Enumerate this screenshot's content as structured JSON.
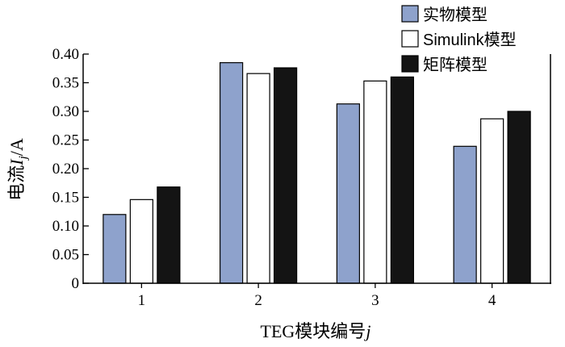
{
  "chart_data": {
    "type": "bar",
    "categories": [
      "1",
      "2",
      "3",
      "4"
    ],
    "series": [
      {
        "name": "实物模型",
        "color": "#8ea2cc",
        "values": [
          0.12,
          0.385,
          0.313,
          0.239
        ]
      },
      {
        "name": "Simulink模型",
        "color": "#ffffff",
        "values": [
          0.146,
          0.366,
          0.353,
          0.287
        ]
      },
      {
        "name": "矩阵模型",
        "color": "#141414",
        "values": [
          0.168,
          0.376,
          0.36,
          0.3
        ]
      }
    ],
    "ylim": [
      0,
      0.4
    ],
    "yticks": [
      "0",
      "0.05",
      "0.10",
      "0.15",
      "0.20",
      "0.25",
      "0.30",
      "0.35",
      "0.40"
    ],
    "xlabel": "TEG模块编号j",
    "ylabel": "电流Ij/A",
    "legend": "top-right",
    "grid": false
  }
}
